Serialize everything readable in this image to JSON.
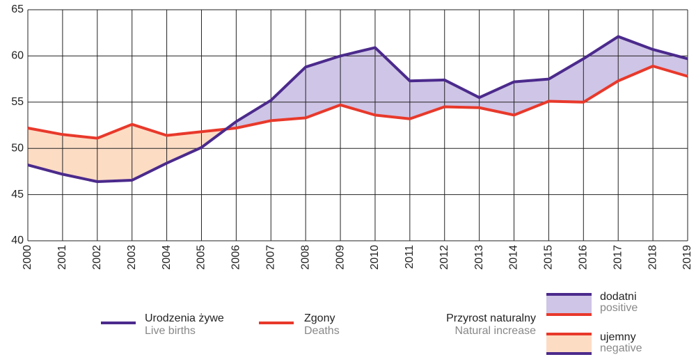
{
  "chart_data": {
    "type": "line",
    "categories": [
      "2000",
      "2001",
      "2002",
      "2003",
      "2004",
      "2005",
      "2006",
      "2007",
      "2008",
      "2009",
      "2010",
      "2011",
      "2012",
      "2013",
      "2014",
      "2015",
      "2016",
      "2017",
      "2018",
      "2019"
    ],
    "series": [
      {
        "name": "Urodzenia żywe",
        "name_en": "Live births",
        "color": "#4b2a8c",
        "values": [
          48.2,
          47.2,
          46.4,
          46.55,
          48.4,
          50.1,
          52.9,
          55.2,
          58.8,
          60.0,
          60.9,
          57.3,
          57.4,
          55.5,
          57.2,
          57.5,
          59.7,
          62.1,
          60.7,
          59.7
        ]
      },
      {
        "name": "Zgony",
        "name_en": "Deaths",
        "color": "#e8392b",
        "values": [
          52.2,
          51.5,
          51.1,
          52.6,
          51.4,
          51.8,
          52.2,
          53.0,
          53.3,
          54.7,
          53.6,
          53.2,
          54.5,
          54.4,
          53.6,
          55.1,
          55.0,
          57.3,
          58.9,
          57.8
        ]
      }
    ],
    "fill_legend": {
      "title": "Przyrost naturalny",
      "title_en": "Natural increase",
      "positive": {
        "name": "dodatni",
        "name_en": "positive",
        "color": "#cfc5e6"
      },
      "negative": {
        "name": "ujemny",
        "name_en": "negative",
        "color": "#fddcc4"
      }
    },
    "ylim": [
      40,
      65
    ],
    "yticks": [
      40,
      45,
      50,
      55,
      60,
      65
    ],
    "grid": true
  }
}
